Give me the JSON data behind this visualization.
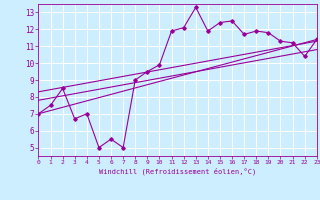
{
  "title": "",
  "xlabel": "Windchill (Refroidissement éolien,°C)",
  "background_color": "#cceeff",
  "grid_color": "#ffffff",
  "line_color": "#990099",
  "xlim": [
    0,
    23
  ],
  "ylim": [
    4.5,
    13.5
  ],
  "xticks": [
    0,
    1,
    2,
    3,
    4,
    5,
    6,
    7,
    8,
    9,
    10,
    11,
    12,
    13,
    14,
    15,
    16,
    17,
    18,
    19,
    20,
    21,
    22,
    23
  ],
  "yticks": [
    5,
    6,
    7,
    8,
    9,
    10,
    11,
    12,
    13
  ],
  "data_x": [
    0,
    1,
    2,
    3,
    4,
    5,
    6,
    7,
    8,
    9,
    10,
    11,
    12,
    13,
    14,
    15,
    16,
    17,
    18,
    19,
    20,
    21,
    22,
    23
  ],
  "data_y": [
    7.0,
    7.5,
    8.5,
    6.7,
    7.0,
    5.0,
    5.5,
    5.0,
    9.0,
    9.5,
    9.9,
    11.9,
    12.1,
    13.3,
    11.9,
    12.4,
    12.5,
    11.7,
    11.9,
    11.8,
    11.3,
    11.2,
    10.4,
    11.4
  ],
  "trend1_x": [
    0,
    23
  ],
  "trend1_y": [
    7.0,
    11.4
  ],
  "trend2_x": [
    0,
    23
  ],
  "trend2_y": [
    8.3,
    11.3
  ],
  "trend3_x": [
    0,
    23
  ],
  "trend3_y": [
    7.8,
    10.8
  ]
}
